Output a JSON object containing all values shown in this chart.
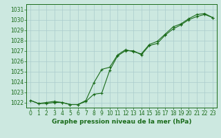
{
  "title": "Graphe pression niveau de la mer (hPa)",
  "bg_color": "#cce8e0",
  "grid_color": "#aacccc",
  "line_color": "#1a6b1a",
  "xlim": [
    -0.5,
    23.5
  ],
  "ylim": [
    1021.5,
    1031.5
  ],
  "yticks": [
    1022,
    1023,
    1024,
    1025,
    1026,
    1027,
    1028,
    1029,
    1030,
    1031
  ],
  "xticks": [
    0,
    1,
    2,
    3,
    4,
    5,
    6,
    7,
    8,
    9,
    10,
    11,
    12,
    13,
    14,
    15,
    16,
    17,
    18,
    19,
    20,
    21,
    22,
    23
  ],
  "series1_x": [
    0,
    1,
    2,
    3,
    4,
    5,
    6,
    7,
    8,
    9,
    10,
    11,
    12,
    13,
    14,
    15,
    16,
    17,
    18,
    19,
    20,
    21,
    22,
    23
  ],
  "series1_y": [
    1022.2,
    1021.9,
    1022.0,
    1022.1,
    1022.0,
    1021.8,
    1021.8,
    1022.2,
    1023.9,
    1025.2,
    1025.4,
    1026.6,
    1027.1,
    1026.9,
    1026.7,
    1027.6,
    1027.9,
    1028.6,
    1029.3,
    1029.6,
    1030.1,
    1030.5,
    1030.6,
    1030.2
  ],
  "series2_x": [
    0,
    1,
    2,
    3,
    4,
    5,
    6,
    7,
    8,
    9,
    10,
    11,
    12,
    13,
    14,
    15,
    16,
    17,
    18,
    19,
    20,
    21,
    22,
    23
  ],
  "series2_y": [
    1022.2,
    1021.9,
    1021.9,
    1022.0,
    1022.0,
    1021.8,
    1021.8,
    1022.1,
    1022.8,
    1022.9,
    1025.1,
    1026.5,
    1027.0,
    1027.0,
    1026.6,
    1027.5,
    1027.7,
    1028.5,
    1029.1,
    1029.5,
    1030.0,
    1030.3,
    1030.5,
    1030.2
  ],
  "tick_fontsize": 5.5,
  "xlabel_fontsize": 6.5
}
